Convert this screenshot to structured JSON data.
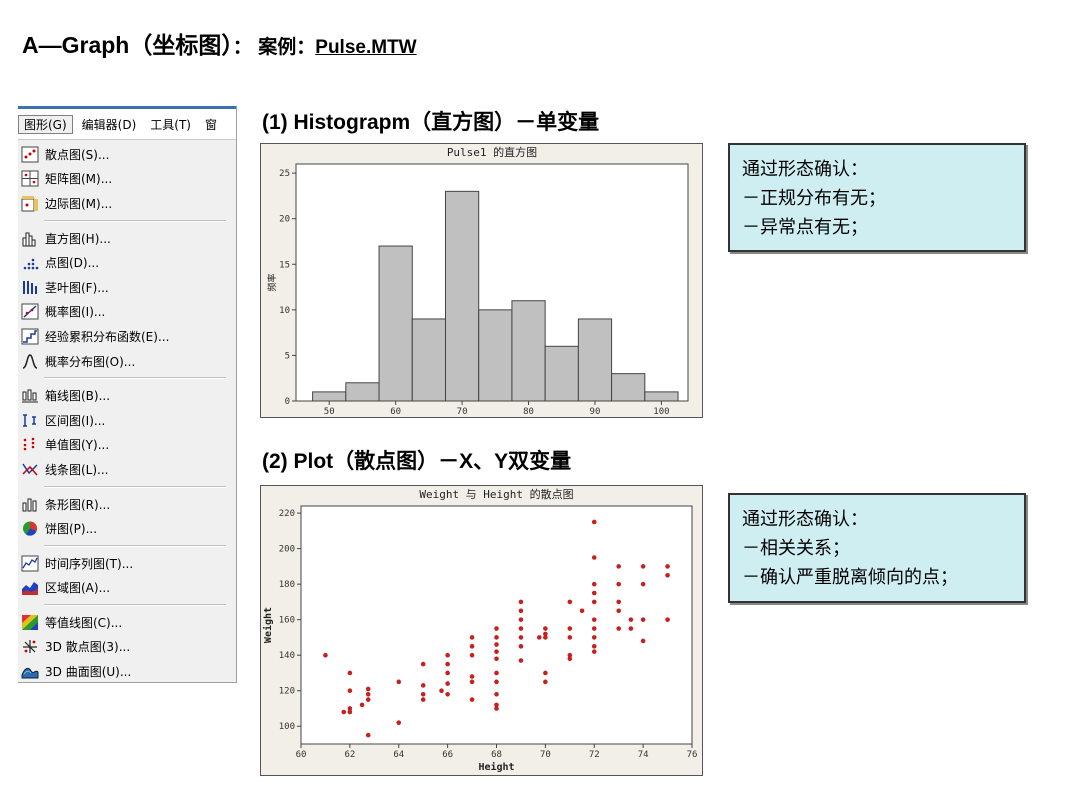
{
  "title": {
    "main": "A—Graph（坐标图）",
    "colon": "：",
    "case_label": "案例：",
    "case_file": "Pulse.MTW"
  },
  "menu": {
    "bar": [
      "图形(G)",
      "编辑器(D)",
      "工具(T)",
      "窗"
    ],
    "groups": [
      [
        {
          "label": "散点图(S)...",
          "icon": "scatter-plot-icon"
        },
        {
          "label": "矩阵图(M)...",
          "icon": "matrix-plot-icon"
        },
        {
          "label": "边际图(M)...",
          "icon": "marginal-plot-icon"
        }
      ],
      [
        {
          "label": "直方图(H)...",
          "icon": "histogram-icon"
        },
        {
          "label": "点图(D)...",
          "icon": "dotplot-icon"
        },
        {
          "label": "茎叶图(F)...",
          "icon": "stem-leaf-icon"
        },
        {
          "label": "概率图(I)...",
          "icon": "probability-plot-icon"
        },
        {
          "label": "经验累积分布函数(E)...",
          "icon": "ecdf-icon"
        },
        {
          "label": "概率分布图(O)...",
          "icon": "distribution-plot-icon"
        }
      ],
      [
        {
          "label": "箱线图(B)...",
          "icon": "boxplot-icon"
        },
        {
          "label": "区间图(I)...",
          "icon": "interval-plot-icon"
        },
        {
          "label": "单值图(Y)...",
          "icon": "individual-value-plot-icon"
        },
        {
          "label": "线条图(L)...",
          "icon": "line-plot-icon"
        }
      ],
      [
        {
          "label": "条形图(R)...",
          "icon": "bar-chart-icon"
        },
        {
          "label": "饼图(P)...",
          "icon": "pie-chart-icon"
        }
      ],
      [
        {
          "label": "时间序列图(T)...",
          "icon": "time-series-icon"
        },
        {
          "label": "区域图(A)...",
          "icon": "area-graph-icon"
        }
      ],
      [
        {
          "label": "等值线图(C)...",
          "icon": "contour-plot-icon"
        },
        {
          "label": "3D 散点图(3)...",
          "icon": "3d-scatter-icon"
        },
        {
          "label": "3D 曲面图(U)...",
          "icon": "3d-surface-icon"
        }
      ]
    ]
  },
  "section1": {
    "title": "(1) Histograpm（直方图）－单变量"
  },
  "section2": {
    "title": "(2) Plot（散点图）－X、Y双变量"
  },
  "note1": {
    "lines": [
      "通过形态确认：",
      "－正规分布有无；",
      "－异常点有无；"
    ]
  },
  "note2": {
    "lines": [
      "通过形态确认：",
      "－相关关系；",
      "－确认严重脱离倾向的点；"
    ]
  },
  "colors": {
    "bar_fill": "#c0c0c0",
    "point": "#c62020",
    "note_bg": "#cfeef2",
    "chart_bg": "#f1efe8"
  },
  "chart_data": [
    {
      "type": "bar",
      "title": "Pulse1 的直方图",
      "xlabel": "",
      "ylabel": "频率",
      "bin_width": 5,
      "bin_starts": [
        47.5,
        52.5,
        57.5,
        62.5,
        67.5,
        72.5,
        77.5,
        82.5,
        87.5,
        92.5,
        97.5
      ],
      "values": [
        1,
        2,
        17,
        9,
        23,
        10,
        11,
        6,
        9,
        3,
        1
      ],
      "xticks": [
        50,
        60,
        70,
        80,
        90,
        100
      ],
      "yticks": [
        0,
        5,
        10,
        15,
        20,
        25
      ],
      "xlim": [
        45,
        104
      ],
      "ylim": [
        0,
        26
      ]
    },
    {
      "type": "scatter",
      "title": "Weight 与 Height 的散点图",
      "xlabel": "Height",
      "ylabel": "Weight",
      "xticks": [
        60,
        62,
        64,
        66,
        68,
        70,
        72,
        74,
        76
      ],
      "yticks": [
        100,
        120,
        140,
        160,
        180,
        200,
        220
      ],
      "xlim": [
        60,
        76
      ],
      "ylim": [
        90,
        224
      ],
      "points": [
        [
          61,
          140
        ],
        [
          61.75,
          108
        ],
        [
          62,
          108
        ],
        [
          62,
          110
        ],
        [
          62,
          120
        ],
        [
          62,
          130
        ],
        [
          62.5,
          112
        ],
        [
          62.75,
          95
        ],
        [
          62.75,
          115
        ],
        [
          62.75,
          118
        ],
        [
          62.75,
          121
        ],
        [
          64,
          102
        ],
        [
          64,
          125
        ],
        [
          65,
          115
        ],
        [
          65,
          118
        ],
        [
          65,
          123
        ],
        [
          65,
          135
        ],
        [
          65.75,
          120
        ],
        [
          66,
          118
        ],
        [
          66,
          124
        ],
        [
          66,
          130
        ],
        [
          66,
          135
        ],
        [
          66,
          140
        ],
        [
          67,
          115
        ],
        [
          67,
          125
        ],
        [
          67,
          128
        ],
        [
          67,
          140
        ],
        [
          67,
          145
        ],
        [
          67,
          150
        ],
        [
          68,
          110
        ],
        [
          68,
          112
        ],
        [
          68,
          118
        ],
        [
          68,
          125
        ],
        [
          68,
          130
        ],
        [
          68,
          138
        ],
        [
          68,
          142
        ],
        [
          68,
          146
        ],
        [
          68,
          150
        ],
        [
          68,
          155
        ],
        [
          69,
          137
        ],
        [
          69,
          145
        ],
        [
          69,
          150
        ],
        [
          69,
          155
        ],
        [
          69,
          160
        ],
        [
          69,
          165
        ],
        [
          69,
          170
        ],
        [
          69.75,
          150
        ],
        [
          70,
          125
        ],
        [
          70,
          130
        ],
        [
          70,
          150
        ],
        [
          70,
          152
        ],
        [
          70,
          155
        ],
        [
          71,
          138
        ],
        [
          71,
          140
        ],
        [
          71,
          150
        ],
        [
          71,
          155
        ],
        [
          71,
          170
        ],
        [
          71.5,
          165
        ],
        [
          72,
          142
        ],
        [
          72,
          145
        ],
        [
          72,
          150
        ],
        [
          72,
          155
        ],
        [
          72,
          160
        ],
        [
          72,
          170
        ],
        [
          72,
          175
        ],
        [
          72,
          180
        ],
        [
          72,
          195
        ],
        [
          72,
          215
        ],
        [
          73,
          155
        ],
        [
          73,
          165
        ],
        [
          73,
          170
        ],
        [
          73,
          180
        ],
        [
          73,
          190
        ],
        [
          73.5,
          155
        ],
        [
          73.5,
          160
        ],
        [
          74,
          148
        ],
        [
          74,
          160
        ],
        [
          74,
          180
        ],
        [
          74,
          190
        ],
        [
          75,
          160
        ],
        [
          75,
          185
        ],
        [
          75,
          190
        ]
      ]
    }
  ]
}
